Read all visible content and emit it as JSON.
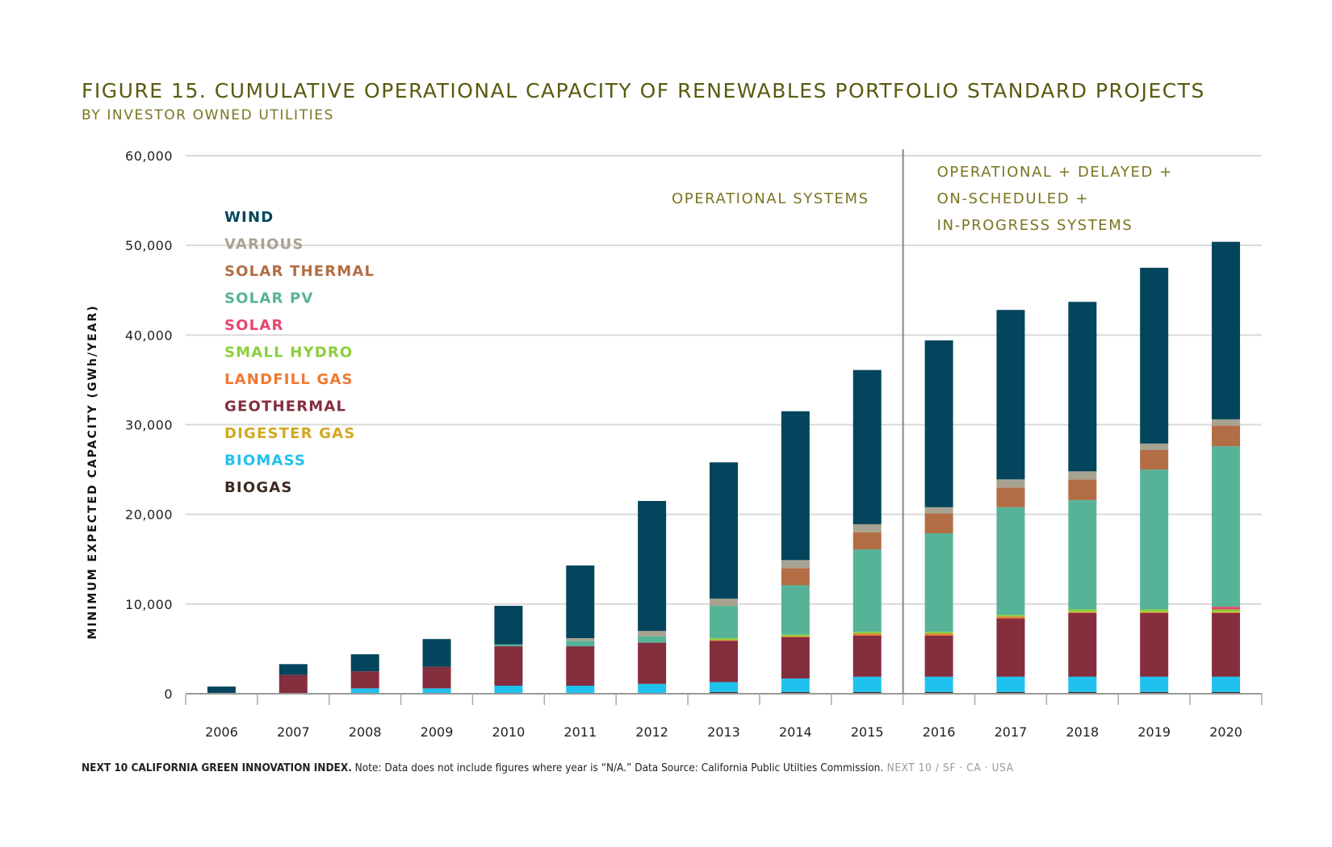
{
  "header": {
    "title": "FIGURE 15. CUMULATIVE OPERATIONAL CAPACITY OF RENEWABLES PORTFOLIO STANDARD PROJECTS",
    "subtitle": "BY INVESTOR OWNED UTILITIES"
  },
  "footer": {
    "source_bold": "NEXT 10 CALIFORNIA GREEN INNOVATION INDEX.",
    "note": " Note: Data does not include figures where year is “N/A.” Data Source: California Public Utilties Commission.",
    "brand": " NEXT 10  /  SF · CA · USA"
  },
  "colors": {
    "WIND": "#03455c",
    "VARIOUS": "#a8a391",
    "SOLAR THERMAL": "#b26d44",
    "SOLAR PV": "#57b398",
    "SOLAR": "#e8456e",
    "SMALL HYDRO": "#8ccf3c",
    "LANDFILL GAS": "#ee7931",
    "GEOTHERMAL": "#842e3e",
    "DIGESTER GAS": "#d2a820",
    "BIOMASS": "#1fc1ee",
    "BIOGAS": "#3c2a1e"
  },
  "chart_data": {
    "type": "bar",
    "stacked": true,
    "ylabel": "MINIMUM EXPECTED CAPACITY (GWh/YEAR)",
    "ylim": [
      0,
      60000
    ],
    "yticks": [
      "0",
      "10,000",
      "20,000",
      "30,000",
      "40,000",
      "50,000",
      "60,000"
    ],
    "grid": true,
    "legend_position": "top-left",
    "annotations": [
      {
        "text": [
          "OPERATIONAL SYSTEMS"
        ]
      },
      {
        "text": [
          "OPERATIONAL + DELAYED +",
          "ON-SCHEDULED +",
          "IN-PROGRESS SYSTEMS"
        ]
      }
    ],
    "divider_after_category": "2015",
    "categories": [
      "2006",
      "2007",
      "2008",
      "2009",
      "2010",
      "2011",
      "2012",
      "2013",
      "2014",
      "2015",
      "2016",
      "2017",
      "2018",
      "2019",
      "2020"
    ],
    "series": [
      {
        "name": "BIOGAS",
        "values": [
          0,
          0,
          0,
          0,
          0,
          0,
          0,
          200,
          200,
          200,
          200,
          200,
          200,
          200,
          200
        ]
      },
      {
        "name": "BIOMASS",
        "values": [
          0,
          0,
          600,
          600,
          900,
          900,
          1100,
          1100,
          1500,
          1700,
          1700,
          1700,
          1700,
          1700,
          1700
        ]
      },
      {
        "name": "DIGESTER GAS",
        "values": [
          0,
          0,
          0,
          0,
          0,
          0,
          0,
          0,
          0,
          0,
          0,
          0,
          0,
          0,
          0
        ]
      },
      {
        "name": "GEOTHERMAL",
        "values": [
          100,
          2100,
          1900,
          2400,
          4400,
          4400,
          4600,
          4600,
          4600,
          4600,
          4600,
          6500,
          7100,
          7100,
          7100
        ]
      },
      {
        "name": "LANDFILL GAS",
        "values": [
          0,
          0,
          0,
          0,
          0,
          0,
          0,
          100,
          100,
          200,
          200,
          200,
          100,
          100,
          100
        ]
      },
      {
        "name": "SMALL HYDRO",
        "values": [
          0,
          0,
          0,
          0,
          0,
          0,
          0,
          200,
          200,
          200,
          200,
          200,
          300,
          300,
          300
        ]
      },
      {
        "name": "SOLAR",
        "values": [
          0,
          0,
          0,
          0,
          0,
          0,
          0,
          0,
          0,
          0,
          0,
          0,
          0,
          0,
          300
        ]
      },
      {
        "name": "SOLAR PV",
        "values": [
          0,
          0,
          0,
          0,
          200,
          600,
          700,
          3600,
          5500,
          9200,
          11000,
          12000,
          12200,
          15600,
          17900
        ]
      },
      {
        "name": "SOLAR THERMAL",
        "values": [
          0,
          0,
          0,
          0,
          0,
          0,
          0,
          0,
          1900,
          1900,
          2200,
          2200,
          2300,
          2200,
          2300
        ]
      },
      {
        "name": "VARIOUS",
        "values": [
          0,
          0,
          0,
          0,
          0,
          300,
          600,
          800,
          900,
          900,
          700,
          900,
          900,
          700,
          700
        ]
      },
      {
        "name": "WIND",
        "values": [
          700,
          1200,
          1900,
          3100,
          4300,
          8100,
          14500,
          15200,
          16600,
          17200,
          18600,
          18900,
          18900,
          19600,
          19800
        ]
      }
    ]
  }
}
